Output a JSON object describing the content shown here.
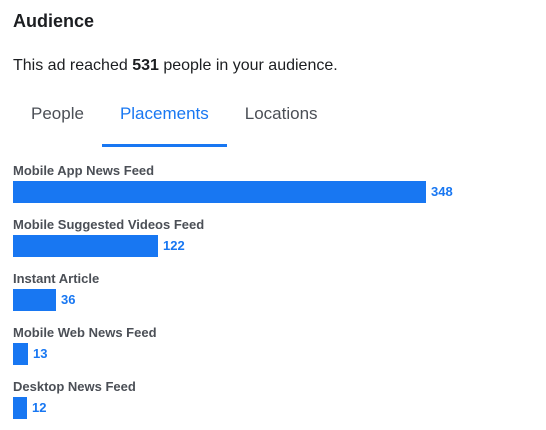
{
  "audience": {
    "title": "Audience",
    "summary_prefix": "This ad reached ",
    "reach_count": "531",
    "summary_suffix": " people in your audience."
  },
  "tabs": [
    {
      "label": "People",
      "active": false
    },
    {
      "label": "Placements",
      "active": true
    },
    {
      "label": "Locations",
      "active": false
    }
  ],
  "colors": {
    "accent": "#1877f2",
    "text": "#1c1e21",
    "muted": "#4b4f56"
  },
  "chart_data": {
    "type": "bar",
    "orientation": "horizontal",
    "categories": [
      "Mobile App News Feed",
      "Mobile Suggested Videos Feed",
      "Instant Article",
      "Mobile Web News Feed",
      "Desktop News Feed"
    ],
    "values": [
      348,
      122,
      36,
      13,
      12
    ],
    "xlim": [
      0,
      348
    ]
  }
}
